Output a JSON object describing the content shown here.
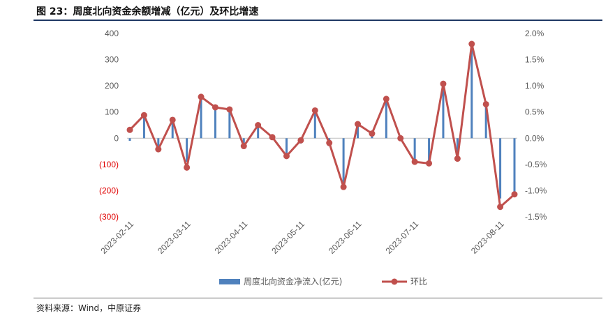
{
  "title": "图 23：周度北向资金余额增减（亿元）及环比增速",
  "source": "资料来源：Wind，中原证券",
  "colors": {
    "bar": "#4f81bd",
    "line": "#c0504d",
    "title_rule": "#1f3864",
    "negative_tick": "#e00000"
  },
  "chart_data": {
    "type": "bar+line",
    "x_tick_labels": [
      "2023-02-11",
      "2023-03-11",
      "2023-04-11",
      "2023-05-11",
      "2023-06-11",
      "2023-07-11",
      "2023-08-11"
    ],
    "x_tick_index": [
      0,
      4,
      8,
      12,
      16,
      20,
      26
    ],
    "y_left": {
      "ticks": [
        "400",
        "300",
        "200",
        "100",
        "0",
        "(100)",
        "(200)",
        "(300)"
      ],
      "range": [
        -300,
        400
      ]
    },
    "y_right": {
      "ticks": [
        "2.0%",
        "1.5%",
        "1.0%",
        "0.5%",
        "0.0%",
        "-0.5%",
        "-1.0%",
        "-1.5%"
      ],
      "range": [
        -1.5,
        2.0
      ]
    },
    "series": [
      {
        "name": "周度北向资金净流入(亿元)",
        "type": "bar",
        "axis": "left",
        "values": [
          -10,
          88,
          -40,
          60,
          -90,
          152,
          120,
          110,
          -20,
          60,
          5,
          -70,
          -20,
          105,
          -30,
          -190,
          60,
          20,
          150,
          0,
          -100,
          -100,
          200,
          -80,
          360,
          130,
          -230,
          -215
        ]
      },
      {
        "name": "环比",
        "type": "line",
        "axis": "right",
        "values": [
          0.16,
          0.44,
          -0.21,
          0.35,
          -0.56,
          0.79,
          0.59,
          0.55,
          -0.15,
          0.25,
          0.02,
          -0.34,
          -0.04,
          0.53,
          -0.09,
          -0.93,
          0.27,
          0.09,
          0.75,
          0.0,
          -0.45,
          -0.48,
          1.04,
          -0.39,
          1.8,
          0.65,
          -1.31,
          -1.07
        ]
      }
    ],
    "legend_position": "bottom",
    "grid": false
  }
}
